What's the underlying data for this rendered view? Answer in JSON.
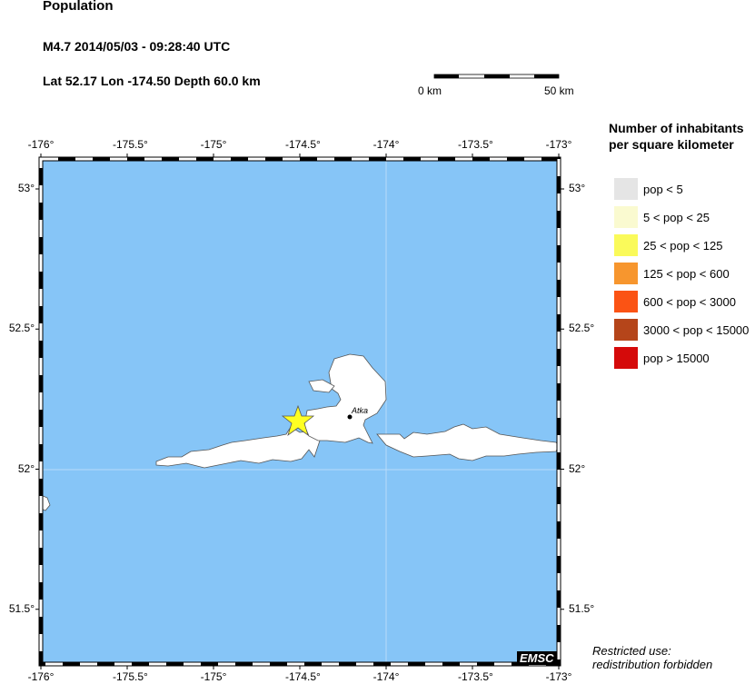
{
  "header": {
    "title": "Population",
    "event": "M4.7  2014/05/03 - 09:28:40 UTC",
    "location": "Lat 52.17    Lon -174.50     Depth  60.0 km"
  },
  "scale_bar": {
    "start_label": "0 km",
    "end_label": "50 km"
  },
  "map": {
    "lon_ticks": [
      "-176°",
      "-175.5°",
      "-175°",
      "-174.5°",
      "-174°",
      "-173.5°",
      "-173°"
    ],
    "lat_ticks": [
      "53°",
      "52.5°",
      "52°",
      "51.5°"
    ],
    "lon_range": [
      -176,
      -173
    ],
    "lat_range": [
      51.3,
      53.1
    ],
    "ocean_color": "#86c5f7",
    "land_color": "#ffffff",
    "epicenter": {
      "lat": 52.17,
      "lon": -174.5,
      "color": "#ffff22",
      "icon": "star-icon"
    },
    "towns": [
      {
        "name": "Atka",
        "lat": 52.2,
        "lon": -174.2
      }
    ],
    "credit": "EMSC"
  },
  "legend": {
    "title_line1": "Number of inhabitants",
    "title_line2": "per square kilometer",
    "items": [
      {
        "label": "pop < 5",
        "color": "#e5e5e5"
      },
      {
        "label": "5 < pop < 25",
        "color": "#fafad0"
      },
      {
        "label": "25 < pop < 125",
        "color": "#fafa5a"
      },
      {
        "label": "125 < pop < 600",
        "color": "#f7962e"
      },
      {
        "label": "600 < pop < 3000",
        "color": "#fb5314"
      },
      {
        "label": "3000 < pop < 15000",
        "color": "#b5451a"
      },
      {
        "label": "pop > 15000",
        "color": "#d50a0a"
      }
    ]
  },
  "footer": {
    "line1": "Restricted use:",
    "line2": "redistribution forbidden"
  }
}
